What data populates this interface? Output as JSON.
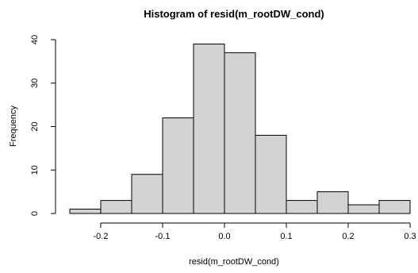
{
  "chart_data": {
    "type": "bar",
    "title": "Histogram of resid(m_rootDW_cond)",
    "xlabel": "resid(m_rootDW_cond)",
    "ylabel": "Frequency",
    "bins": [
      {
        "from": -0.25,
        "to": -0.2,
        "count": 1
      },
      {
        "from": -0.2,
        "to": -0.15,
        "count": 3
      },
      {
        "from": -0.15,
        "to": -0.1,
        "count": 9
      },
      {
        "from": -0.1,
        "to": -0.05,
        "count": 22
      },
      {
        "from": -0.05,
        "to": 0.0,
        "count": 39
      },
      {
        "from": 0.0,
        "to": 0.05,
        "count": 37
      },
      {
        "from": 0.05,
        "to": 0.1,
        "count": 18
      },
      {
        "from": 0.1,
        "to": 0.15,
        "count": 3
      },
      {
        "from": 0.15,
        "to": 0.2,
        "count": 5
      },
      {
        "from": 0.2,
        "to": 0.25,
        "count": 2
      },
      {
        "from": 0.25,
        "to": 0.3,
        "count": 3
      }
    ],
    "x_ticks": [
      -0.2,
      -0.1,
      0.0,
      0.1,
      0.2,
      0.3
    ],
    "x_tick_labels": [
      "-0.2",
      "-0.1",
      "0.0",
      "0.1",
      "0.2",
      "0.3"
    ],
    "y_ticks": [
      0,
      10,
      20,
      30,
      40
    ],
    "y_tick_labels": [
      "0",
      "10",
      "20",
      "30",
      "40"
    ],
    "xlim": [
      -0.25,
      0.3
    ],
    "ylim": [
      0,
      40
    ],
    "grid": false,
    "bar_fill": "#d3d3d3",
    "bar_stroke": "#000000"
  }
}
